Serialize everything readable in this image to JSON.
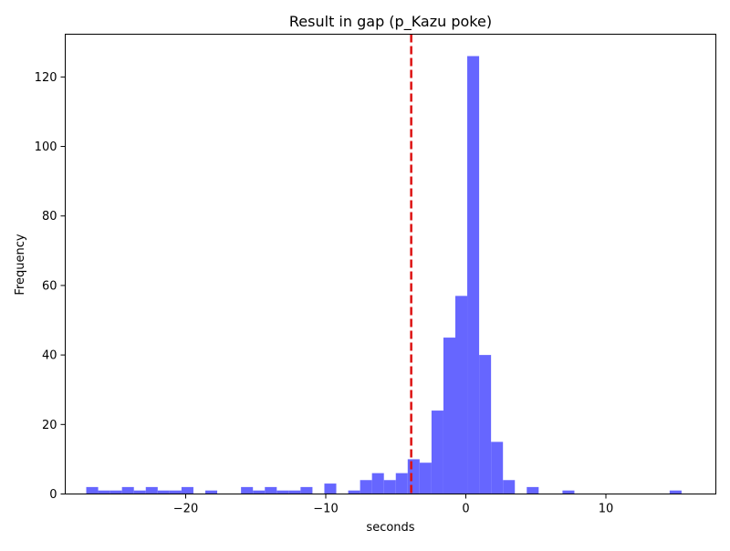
{
  "chart_data": {
    "type": "histogram",
    "title": "Result in gap (p_Kazu poke)",
    "xlabel": "seconds",
    "ylabel": "Frequency",
    "xlim": [
      -28.6,
      17.85
    ],
    "ylim": [
      0,
      132.3
    ],
    "bin_width": 0.85,
    "bin_start": -27.1,
    "x_ticks": [
      {
        "value": -20,
        "label": "−20"
      },
      {
        "value": -10,
        "label": "−10"
      },
      {
        "value": 0,
        "label": "0"
      },
      {
        "value": 10,
        "label": "10"
      }
    ],
    "y_ticks": [
      {
        "value": 0,
        "label": "0"
      },
      {
        "value": 20,
        "label": "20"
      },
      {
        "value": 40,
        "label": "40"
      },
      {
        "value": 60,
        "label": "60"
      },
      {
        "value": 80,
        "label": "80"
      },
      {
        "value": 100,
        "label": "100"
      },
      {
        "value": 120,
        "label": "120"
      }
    ],
    "counts": [
      2,
      1,
      1,
      2,
      1,
      2,
      1,
      1,
      2,
      0,
      1,
      0,
      0,
      2,
      1,
      2,
      1,
      1,
      2,
      0,
      3,
      0,
      1,
      4,
      6,
      4,
      6,
      10,
      9,
      24,
      45,
      57,
      126,
      40,
      15,
      4,
      0,
      2,
      0,
      0,
      1,
      0,
      0,
      0,
      0,
      0,
      0,
      0,
      0,
      1
    ],
    "bar_color": "#6666ff",
    "vline": {
      "x": -3.9,
      "color": "#dd1111",
      "style": "dashed"
    },
    "grid": false
  }
}
